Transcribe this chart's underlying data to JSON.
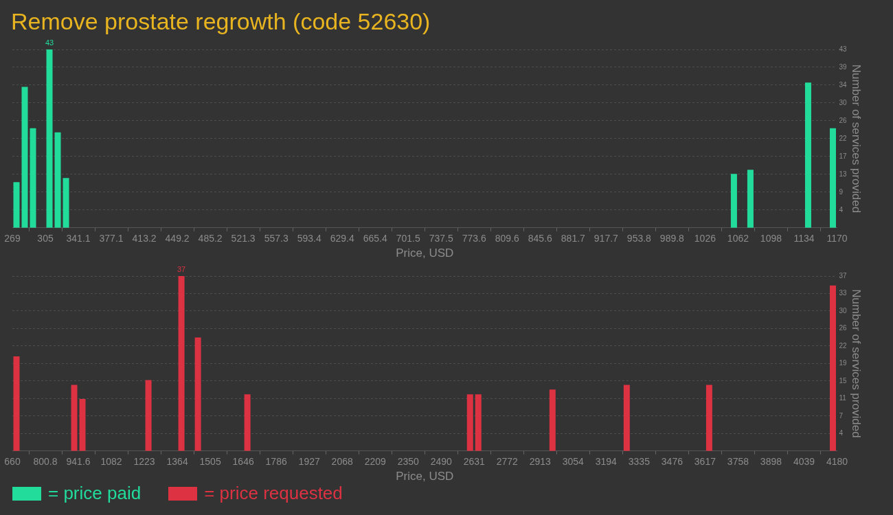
{
  "chart_data": [
    {
      "type": "histogram",
      "title": "Remove prostate regrowth (code 52630)",
      "xlabel": "Price, USD",
      "ylabel": "Number of services provided",
      "bins": [
        269,
        278.01,
        287.02,
        296.03,
        305.04,
        314.05,
        323.06,
        332.07,
        341.08,
        350.09,
        359.1,
        368.11,
        377.12,
        386.13,
        395.14,
        404.15,
        413.16,
        422.17,
        431.18,
        440.19,
        449.2,
        458.21,
        467.22,
        476.23,
        485.24,
        494.25,
        503.26,
        512.27,
        521.28,
        530.29,
        539.3,
        548.31,
        557.32,
        566.33,
        575.34,
        584.35,
        593.36,
        602.37,
        611.38,
        620.39,
        629.4,
        638.41,
        647.42,
        656.43,
        665.44,
        674.45,
        683.46,
        692.47,
        701.48,
        710.49,
        719.5,
        728.51,
        737.52,
        746.53,
        755.54,
        764.55,
        773.56,
        782.57,
        791.58,
        800.59,
        809.6,
        818.61,
        827.62,
        836.63,
        845.64,
        854.65,
        863.66,
        872.67,
        881.68,
        890.69,
        899.7,
        908.71,
        917.72,
        926.73,
        935.74,
        944.75,
        953.76,
        962.77,
        971.78,
        980.79,
        989.8,
        998.81,
        1007.82,
        1016.83,
        1025.84,
        1034.85,
        1043.86,
        1052.87,
        1061.88,
        1070.89,
        1079.9,
        1088.91,
        1097.92,
        1106.93,
        1115.94,
        1124.95,
        1133.96,
        1142.97,
        1151.98,
        1160.99,
        1170
      ],
      "series": [
        {
          "name": "= price paid",
          "color": "#22dc9c",
          "values": [
            11,
            34,
            24,
            0,
            43,
            23,
            12,
            0,
            0,
            0,
            0,
            0,
            0,
            0,
            0,
            0,
            0,
            0,
            0,
            0,
            0,
            0,
            0,
            0,
            0,
            0,
            0,
            0,
            0,
            0,
            0,
            0,
            0,
            0,
            0,
            0,
            0,
            0,
            0,
            0,
            0,
            0,
            0,
            0,
            0,
            0,
            0,
            0,
            0,
            0,
            0,
            0,
            0,
            0,
            0,
            0,
            0,
            0,
            0,
            0,
            0,
            0,
            0,
            0,
            0,
            0,
            0,
            0,
            0,
            0,
            0,
            0,
            0,
            0,
            0,
            0,
            0,
            0,
            0,
            0,
            0,
            0,
            0,
            0,
            0,
            0,
            0,
            13,
            0,
            14,
            0,
            0,
            0,
            0,
            0,
            0,
            35,
            0,
            0,
            24
          ],
          "value_labels": [
            null,
            null,
            null,
            null,
            "43",
            null,
            null,
            null,
            null,
            null,
            null,
            null,
            null,
            null,
            null,
            null,
            null,
            null,
            null,
            null,
            null,
            null,
            null,
            null,
            null,
            null,
            null,
            null,
            null,
            null,
            null,
            null,
            null,
            null,
            null,
            null,
            null,
            null,
            null,
            null,
            null,
            null,
            null,
            null,
            null,
            null,
            null,
            null,
            null,
            null,
            null,
            null,
            null,
            null,
            null,
            null,
            null,
            null,
            null,
            null,
            null,
            null,
            null,
            null,
            null,
            null,
            null,
            null,
            null,
            null,
            null,
            null,
            null,
            null,
            null,
            null,
            null,
            null,
            null,
            null,
            null,
            null,
            null,
            null,
            null,
            null,
            null,
            null,
            null,
            null,
            null,
            null,
            null,
            null,
            null,
            null,
            null,
            null,
            null,
            null
          ]
        }
      ],
      "xlim": [
        269,
        1170
      ],
      "xticks": [
        269,
        {
          "value": 305.04,
          "label": "305"
        },
        {
          "value": 341.08,
          "label": "341.1"
        },
        {
          "value": 377.12,
          "label": "377.1"
        },
        {
          "value": 413.16,
          "label": "413.2"
        },
        449.2,
        {
          "value": 485.24,
          "label": "485.2"
        },
        {
          "value": 521.28,
          "label": "521.3"
        },
        {
          "value": 557.32,
          "label": "557.3"
        },
        {
          "value": 593.36,
          "label": "593.4"
        },
        629.4,
        {
          "value": 665.44,
          "label": "665.4"
        },
        {
          "value": 701.48,
          "label": "701.5"
        },
        {
          "value": 737.52,
          "label": "737.5"
        },
        {
          "value": 773.56,
          "label": "773.6"
        },
        809.6,
        {
          "value": 845.64,
          "label": "845.6"
        },
        {
          "value": 881.68,
          "label": "881.7"
        },
        {
          "value": 917.72,
          "label": "917.7"
        },
        {
          "value": 953.76,
          "label": "953.8"
        },
        989.8,
        {
          "value": 1025.84,
          "label": "1026"
        },
        {
          "value": 1061.88,
          "label": "1062"
        },
        {
          "value": 1097.92,
          "label": "1098"
        },
        {
          "value": 1133.96,
          "label": "1134"
        },
        1170
      ],
      "ylim": [
        0,
        43
      ],
      "yticks": [
        {
          "value": 4.3,
          "label": "4"
        },
        {
          "value": 8.6,
          "label": "9"
        },
        {
          "value": 12.9,
          "label": "13"
        },
        {
          "value": 17.2,
          "label": "17"
        },
        {
          "value": 21.5,
          "label": "22"
        },
        {
          "value": 25.8,
          "label": "26"
        },
        {
          "value": 30.1,
          "label": "30"
        },
        {
          "value": 34.4,
          "label": "34"
        },
        {
          "value": 38.7,
          "label": "39"
        },
        43
      ],
      "grid": "y",
      "legend": "bottom"
    },
    {
      "type": "histogram",
      "xlabel": "Price, USD",
      "ylabel": "Number of services provided",
      "bins": [
        660,
        695.2,
        730.4,
        765.6,
        800.8,
        836,
        871.2,
        906.4,
        941.6,
        976.8,
        1012,
        1047.2,
        1082.4,
        1117.6,
        1152.8,
        1188,
        1223.2,
        1258.4,
        1293.6,
        1328.8,
        1364,
        1399.2,
        1434.4,
        1469.6,
        1504.8,
        1540,
        1575.2,
        1610.4,
        1645.6,
        1680.8,
        1716,
        1751.2,
        1786.4,
        1821.6,
        1856.8,
        1892,
        1927.2,
        1962.4,
        1997.6,
        2032.8,
        2068,
        2103.2,
        2138.4,
        2173.6,
        2208.8,
        2244,
        2279.2,
        2314.4,
        2349.6,
        2384.8,
        2420,
        2455.2,
        2490.4,
        2525.6,
        2560.8,
        2596,
        2631.2,
        2666.4,
        2701.6,
        2736.8,
        2772,
        2807.2,
        2842.4,
        2877.6,
        2912.8,
        2948,
        2983.2,
        3018.4,
        3053.6,
        3088.8,
        3124,
        3159.2,
        3194.4,
        3229.6,
        3264.8,
        3300,
        3335.2,
        3370.4,
        3405.6,
        3440.8,
        3476,
        3511.2,
        3546.4,
        3581.6,
        3616.8,
        3652,
        3687.2,
        3722.4,
        3757.6,
        3792.8,
        3828,
        3863.2,
        3898.4,
        3933.6,
        3968.8,
        4004,
        4039.2,
        4074.4,
        4109.6,
        4144.8,
        4180
      ],
      "series": [
        {
          "name": "= price requested",
          "color": "#dc3242",
          "values": [
            20,
            0,
            0,
            0,
            0,
            0,
            0,
            14,
            11,
            0,
            0,
            0,
            0,
            0,
            0,
            0,
            15,
            0,
            0,
            0,
            37,
            0,
            24,
            0,
            0,
            0,
            0,
            0,
            12,
            0,
            0,
            0,
            0,
            0,
            0,
            0,
            0,
            0,
            0,
            0,
            0,
            0,
            0,
            0,
            0,
            0,
            0,
            0,
            0,
            0,
            0,
            0,
            0,
            0,
            0,
            12,
            12,
            0,
            0,
            0,
            0,
            0,
            0,
            0,
            0,
            13,
            0,
            0,
            0,
            0,
            0,
            0,
            0,
            0,
            14,
            0,
            0,
            0,
            0,
            0,
            0,
            0,
            0,
            0,
            14,
            0,
            0,
            0,
            0,
            0,
            0,
            0,
            0,
            0,
            0,
            0,
            0,
            0,
            0,
            35
          ],
          "value_labels": [
            null,
            null,
            null,
            null,
            null,
            null,
            null,
            null,
            null,
            null,
            null,
            null,
            null,
            null,
            null,
            null,
            null,
            null,
            null,
            null,
            "37",
            null,
            null,
            null,
            null,
            null,
            null,
            null,
            null,
            null,
            null,
            null,
            null,
            null,
            null,
            null,
            null,
            null,
            null,
            null,
            null,
            null,
            null,
            null,
            null,
            null,
            null,
            null,
            null,
            null,
            null,
            null,
            null,
            null,
            null,
            null,
            null,
            null,
            null,
            null,
            null,
            null,
            null,
            null,
            null,
            null,
            null,
            null,
            null,
            null,
            null,
            null,
            null,
            null,
            null,
            null,
            null,
            null,
            null,
            null,
            null,
            null,
            null,
            null,
            null,
            null,
            null,
            null,
            null,
            null,
            null,
            null,
            null,
            null,
            null,
            null,
            null,
            null,
            null,
            null
          ]
        }
      ],
      "xlim": [
        660,
        4180
      ],
      "xticks": [
        660,
        800.8,
        941.6,
        {
          "value": 1082.4,
          "label": "1082"
        },
        {
          "value": 1223.2,
          "label": "1223"
        },
        1364,
        {
          "value": 1504.8,
          "label": "1505"
        },
        {
          "value": 1645.6,
          "label": "1646"
        },
        {
          "value": 1786.4,
          "label": "1786"
        },
        {
          "value": 1927.2,
          "label": "1927"
        },
        2068,
        {
          "value": 2208.8,
          "label": "2209"
        },
        {
          "value": 2349.6,
          "label": "2350"
        },
        {
          "value": 2490.4,
          "label": "2490"
        },
        {
          "value": 2631.2,
          "label": "2631"
        },
        2772,
        {
          "value": 2912.8,
          "label": "2913"
        },
        {
          "value": 3053.6,
          "label": "3054"
        },
        {
          "value": 3194.4,
          "label": "3194"
        },
        {
          "value": 3335.2,
          "label": "3335"
        },
        3476,
        {
          "value": 3616.8,
          "label": "3617"
        },
        {
          "value": 3757.6,
          "label": "3758"
        },
        {
          "value": 3898.4,
          "label": "3898"
        },
        {
          "value": 4039.2,
          "label": "4039"
        },
        4180
      ],
      "ylim": [
        0,
        37
      ],
      "yticks": [
        {
          "value": 3.7,
          "label": "4"
        },
        {
          "value": 7.4,
          "label": "7"
        },
        {
          "value": 11.1,
          "label": "11"
        },
        {
          "value": 14.8,
          "label": "15"
        },
        {
          "value": 18.5,
          "label": "19"
        },
        {
          "value": 22.2,
          "label": "22"
        },
        {
          "value": 25.9,
          "label": "26"
        },
        {
          "value": 29.6,
          "label": "30"
        },
        {
          "value": 33.3,
          "label": "33"
        },
        37
      ],
      "grid": "y",
      "legend": "bottom"
    }
  ]
}
